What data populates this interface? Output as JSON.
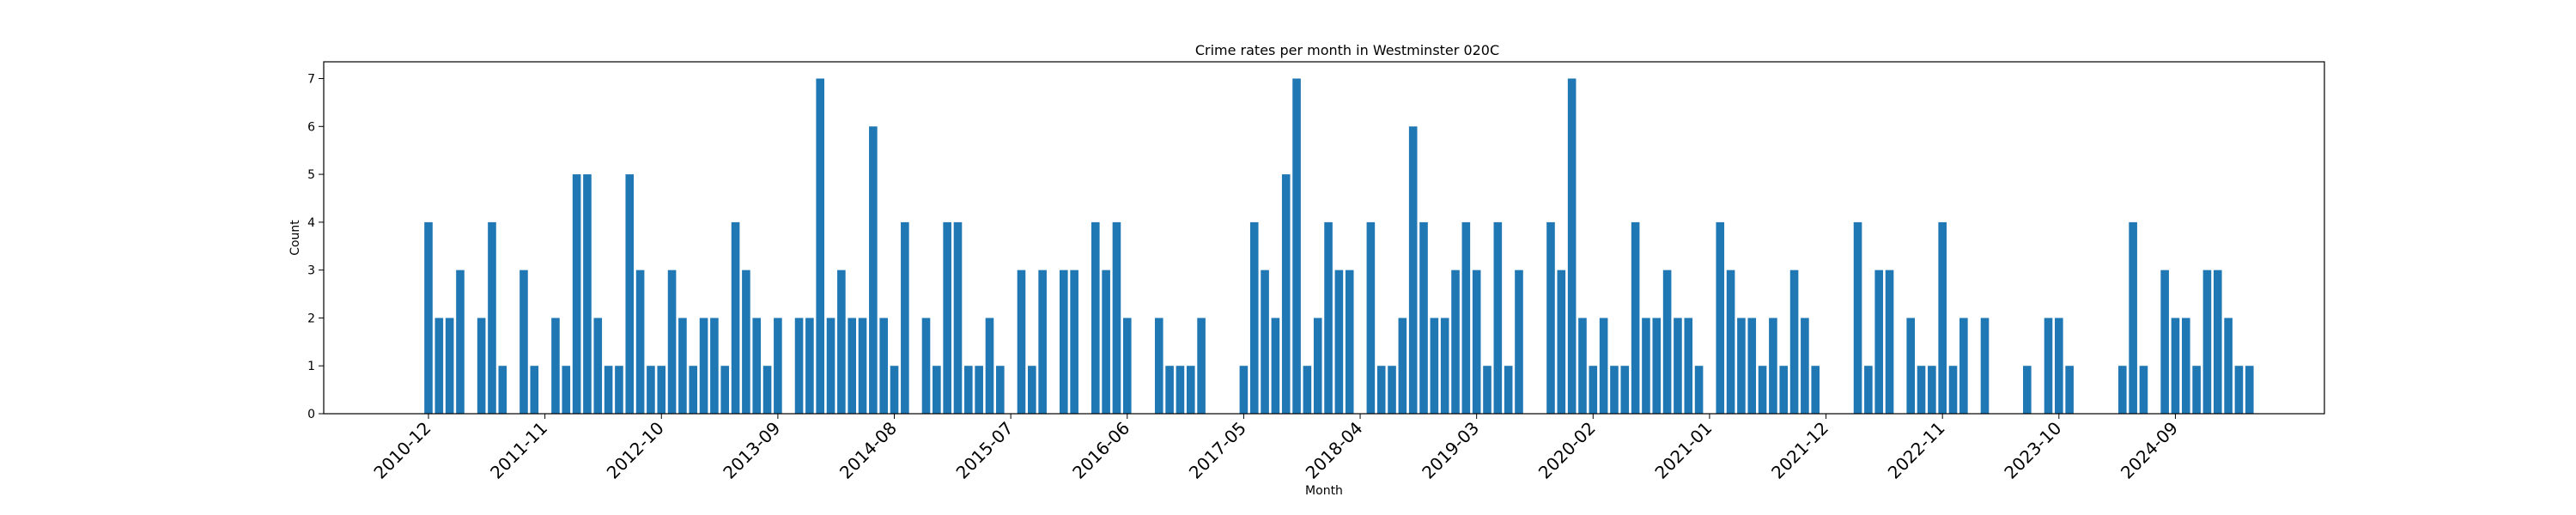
{
  "chart_data": {
    "type": "bar",
    "title": "Crime rates per month in Westminster 020C",
    "xlabel": "Month",
    "ylabel": "Count",
    "ylim": [
      0,
      7.35
    ],
    "yticks": [
      0,
      1,
      2,
      3,
      4,
      5,
      6,
      7
    ],
    "start_month": "2010-12",
    "xticks": [
      "2010-12",
      "2011-11",
      "2012-10",
      "2013-09",
      "2014-08",
      "2015-07",
      "2016-06",
      "2017-05",
      "2018-04",
      "2019-03",
      "2020-02",
      "2021-01",
      "2021-12",
      "2022-11",
      "2023-10",
      "2024-09"
    ],
    "bar_color": "#1f77b4",
    "grid": false,
    "legend": "none",
    "values": [
      4,
      2,
      2,
      3,
      0,
      2,
      4,
      1,
      0,
      3,
      1,
      0,
      2,
      1,
      5,
      5,
      2,
      1,
      1,
      5,
      3,
      1,
      1,
      3,
      2,
      1,
      2,
      2,
      1,
      4,
      3,
      2,
      1,
      2,
      0,
      2,
      2,
      7,
      2,
      3,
      2,
      2,
      6,
      2,
      1,
      4,
      0,
      2,
      1,
      4,
      4,
      1,
      1,
      2,
      1,
      0,
      3,
      1,
      3,
      0,
      3,
      3,
      0,
      4,
      3,
      4,
      2,
      0,
      0,
      2,
      1,
      1,
      1,
      2,
      0,
      0,
      0,
      1,
      4,
      3,
      2,
      5,
      7,
      1,
      2,
      4,
      3,
      3,
      0,
      4,
      1,
      1,
      2,
      6,
      4,
      2,
      2,
      3,
      4,
      3,
      1,
      4,
      1,
      3,
      0,
      0,
      4,
      3,
      7,
      2,
      1,
      2,
      1,
      1,
      4,
      2,
      2,
      3,
      2,
      2,
      1,
      0,
      4,
      3,
      2,
      2,
      1,
      2,
      1,
      3,
      2,
      1,
      0,
      0,
      0,
      4,
      1,
      3,
      3,
      0,
      2,
      1,
      1,
      4,
      1,
      2,
      0,
      2,
      0,
      0,
      0,
      1,
      0,
      2,
      2,
      1,
      0,
      0,
      0,
      0,
      1,
      4,
      1,
      0,
      3,
      2,
      2,
      1,
      3,
      3,
      2,
      1,
      1
    ]
  }
}
